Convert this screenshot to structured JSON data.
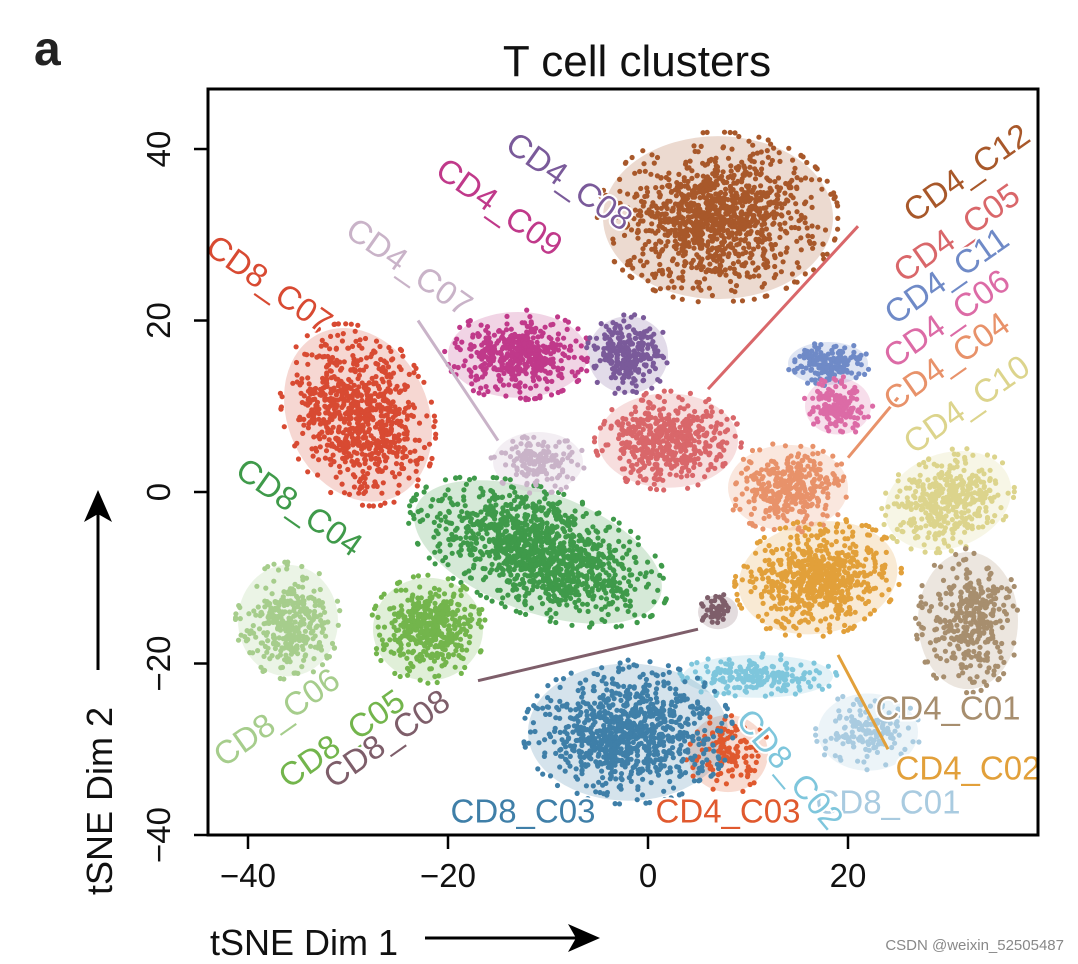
{
  "panel_label": "a",
  "watermark": "CSDN @weixin_52505487",
  "chart_data": {
    "type": "scatter",
    "title": "T cell clusters",
    "xlabel": "tSNE Dim 1",
    "ylabel": "tSNE Dim 2",
    "xlim": [
      -44,
      39
    ],
    "ylim": [
      -40,
      47
    ],
    "xticks": [
      -40,
      -20,
      0,
      20
    ],
    "xtick_labels": [
      "−40",
      "−20",
      "0",
      "20"
    ],
    "yticks": [
      -40,
      -20,
      0,
      20,
      40
    ],
    "ytick_labels": [
      "−40",
      "−20",
      "0",
      "20",
      "40"
    ],
    "grid": false,
    "legend": "none",
    "clusters": [
      {
        "name": "CD4_C12",
        "color": "#a8582a",
        "center": [
          7,
          32
        ],
        "radius": [
          11.5,
          9.5
        ],
        "angle": 0,
        "n": 1100,
        "label_pos": [
          32,
          37
        ],
        "label_rot": -35,
        "line": null
      },
      {
        "name": "CD4_C05",
        "color": "#d9676a",
        "center": [
          2,
          6
        ],
        "radius": [
          7,
          5.5
        ],
        "angle": 0,
        "n": 500,
        "label_pos": [
          31,
          30
        ],
        "label_rot": -35,
        "line": [
          [
            21,
            31
          ],
          [
            6,
            12
          ]
        ]
      },
      {
        "name": "CD4_C11",
        "color": "#6f8ac7",
        "center": [
          18,
          15
        ],
        "radius": [
          4,
          2.5
        ],
        "angle": 0,
        "n": 160,
        "label_pos": [
          30,
          25
        ],
        "label_rot": -35,
        "line": null
      },
      {
        "name": "CD4_C06",
        "color": "#dc6ba6",
        "center": [
          19,
          10
        ],
        "radius": [
          3.3,
          3.3
        ],
        "angle": 0,
        "n": 160,
        "label_pos": [
          30,
          20
        ],
        "label_rot": -35,
        "line": null
      },
      {
        "name": "CD4_C04",
        "color": "#e8926a",
        "center": [
          14,
          0.5
        ],
        "radius": [
          6,
          5
        ],
        "angle": 0,
        "n": 350,
        "label_pos": [
          30,
          15
        ],
        "label_rot": -35,
        "line": [
          [
            25,
            11
          ],
          [
            20,
            4
          ]
        ]
      },
      {
        "name": "CD4_C10",
        "color": "#dcd48c",
        "center": [
          30,
          -1
        ],
        "radius": [
          6.5,
          5.5
        ],
        "angle": 20,
        "n": 400,
        "label_pos": [
          32,
          10
        ],
        "label_rot": -35,
        "line": null
      },
      {
        "name": "CD4_C02",
        "color": "#e2a03a",
        "center": [
          17,
          -10
        ],
        "radius": [
          8,
          6.5
        ],
        "angle": 10,
        "n": 650,
        "label_pos": [
          32,
          -32.5
        ],
        "label_rot": 0,
        "line": [
          [
            24,
            -30
          ],
          [
            19,
            -19
          ]
        ]
      },
      {
        "name": "CD4_C01",
        "color": "#a78e6e",
        "center": [
          32,
          -15
        ],
        "radius": [
          5,
          8
        ],
        "angle": 0,
        "n": 350,
        "label_pos": [
          30,
          -25.5
        ],
        "label_rot": 0,
        "line": null
      },
      {
        "name": "CD4_C03",
        "color": "#e0592e",
        "center": [
          8,
          -30.5
        ],
        "radius": [
          4,
          4.5
        ],
        "angle": 0,
        "n": 120,
        "label_pos": [
          8,
          -37.5
        ],
        "label_rot": 0,
        "line": null
      },
      {
        "name": "CD8_C01",
        "color": "#a9cbe0",
        "center": [
          22,
          -28
        ],
        "radius": [
          5,
          4.5
        ],
        "angle": 0,
        "n": 160,
        "label_pos": [
          24,
          -36.5
        ],
        "label_rot": 0,
        "line": null
      },
      {
        "name": "CD8_C02",
        "color": "#7ec6dc",
        "center": [
          11,
          -21.5
        ],
        "radius": [
          7.5,
          2.5
        ],
        "angle": 0,
        "n": 200,
        "label_pos": [
          14,
          -32.5
        ],
        "label_rot": 50,
        "line": null
      },
      {
        "name": "CD8_C03",
        "color": "#3f7fa8",
        "center": [
          -2,
          -28
        ],
        "radius": [
          10,
          8
        ],
        "angle": 0,
        "n": 900,
        "label_pos": [
          -12.5,
          -37.5
        ],
        "label_rot": 0,
        "line": null
      },
      {
        "name": "CD8_C04",
        "color": "#3f9a4a",
        "center": [
          -11,
          -7
        ],
        "radius": [
          13,
          7
        ],
        "angle": -20,
        "n": 1200,
        "label_pos": [
          -35,
          -2
        ],
        "label_rot": 35,
        "line": null
      },
      {
        "name": "CD8_C05",
        "color": "#73b54c",
        "center": [
          -22,
          -16
        ],
        "radius": [
          5.5,
          6
        ],
        "angle": 0,
        "n": 450,
        "label_pos": [
          -30.5,
          -29
        ],
        "label_rot": -35,
        "line": null
      },
      {
        "name": "CD8_C06",
        "color": "#a6cd8c",
        "center": [
          -36,
          -15
        ],
        "radius": [
          5,
          6.5
        ],
        "angle": 0,
        "n": 350,
        "label_pos": [
          -37,
          -26.5
        ],
        "label_rot": -35,
        "line": null
      },
      {
        "name": "CD8_C07",
        "color": "#d84a32",
        "center": [
          -29,
          9
        ],
        "radius": [
          7,
          10.5
        ],
        "angle": 25,
        "n": 800,
        "label_pos": [
          -38,
          24
        ],
        "label_rot": 35,
        "line": null
      },
      {
        "name": "CD8_C08",
        "color": "#7e5e6a",
        "center": [
          7,
          -14
        ],
        "radius": [
          2,
          2
        ],
        "angle": 0,
        "n": 45,
        "label_pos": [
          -26,
          -29
        ],
        "label_rot": -35,
        "line": [
          [
            -17,
            -22
          ],
          [
            5,
            -16
          ]
        ]
      },
      {
        "name": "CD4_C07",
        "color": "#c9b3c8",
        "center": [
          -11,
          3.5
        ],
        "radius": [
          4.5,
          3.5
        ],
        "angle": 0,
        "n": 150,
        "label_pos": [
          -24,
          26
        ],
        "label_rot": 35,
        "line": [
          [
            -23,
            20
          ],
          [
            -15,
            6
          ]
        ]
      },
      {
        "name": "CD4_C09",
        "color": "#c0398a",
        "center": [
          -13,
          16
        ],
        "radius": [
          7,
          5
        ],
        "angle": 0,
        "n": 450,
        "label_pos": [
          -15,
          33
        ],
        "label_rot": 35,
        "line": null
      },
      {
        "name": "CD4_C08",
        "color": "#7a5a9a",
        "center": [
          -2,
          16
        ],
        "radius": [
          4,
          4.5
        ],
        "angle": 0,
        "n": 250,
        "label_pos": [
          -8,
          36
        ],
        "label_rot": 35,
        "line": null
      }
    ]
  }
}
